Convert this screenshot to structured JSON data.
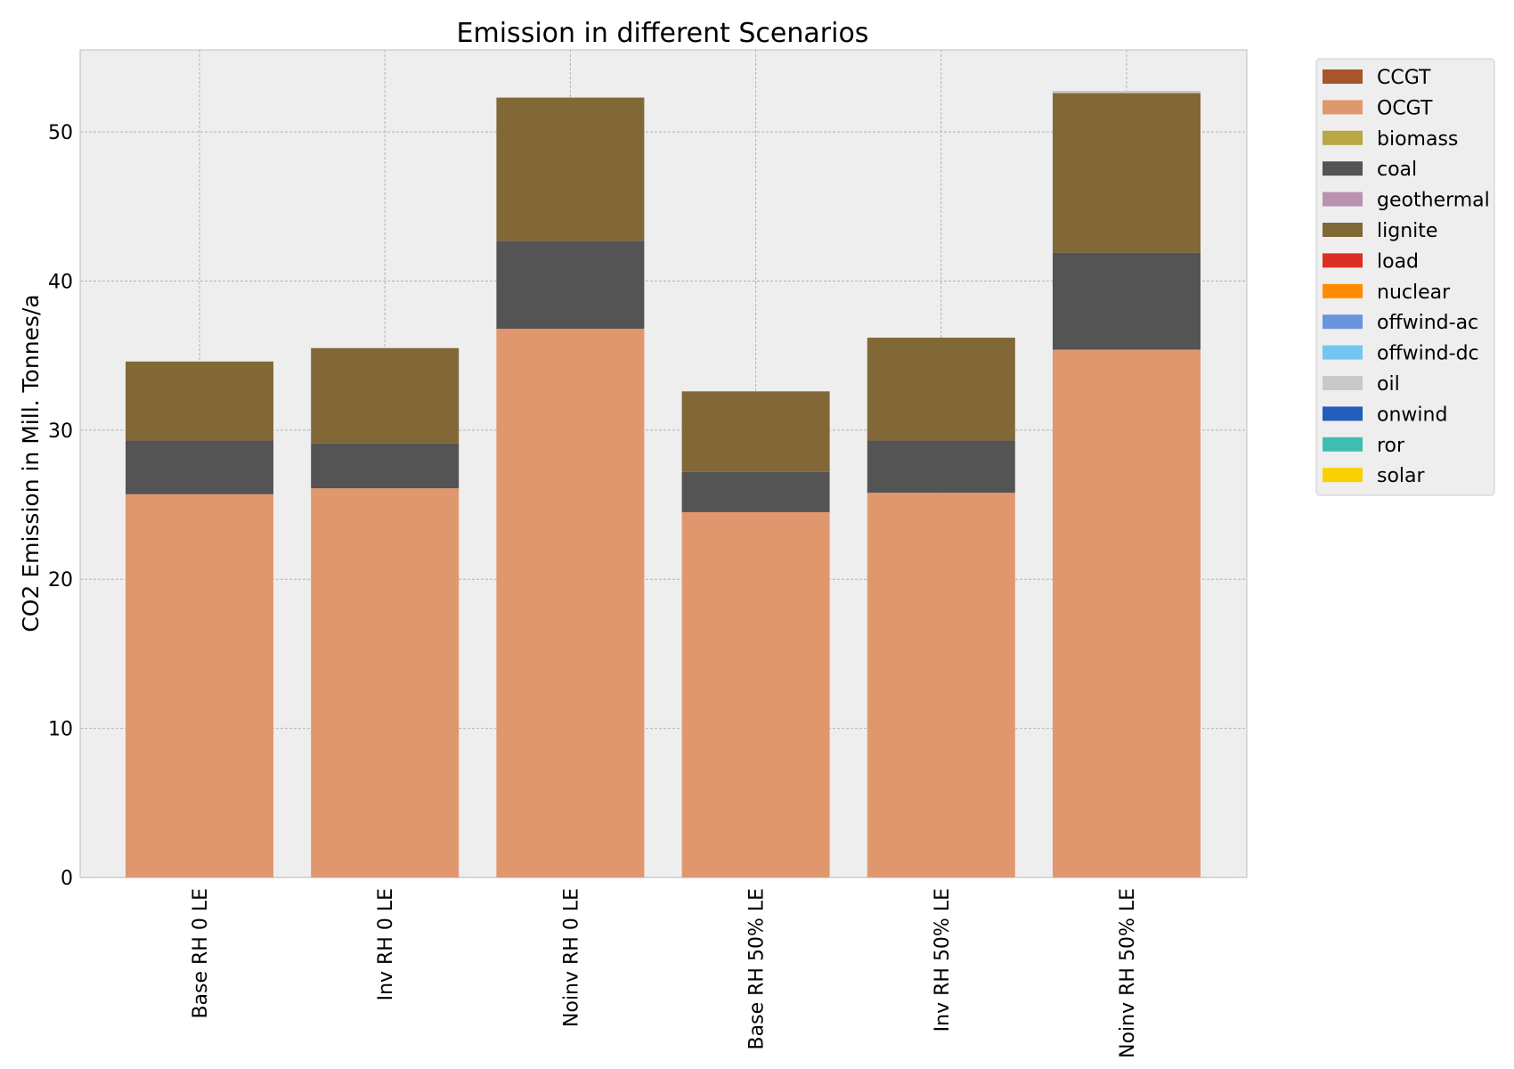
{
  "chart_data": {
    "type": "bar",
    "stacked": true,
    "title": "Emission in different Scenarios",
    "xlabel": "",
    "ylabel": "CO2 Emission in Mill. Tonnes/a",
    "ylim": [
      0,
      55.5
    ],
    "yticks": [
      0,
      10,
      20,
      30,
      40,
      50
    ],
    "grid": true,
    "legend_position": "outside-right-top",
    "categories": [
      "Base RH 0 LE",
      "Inv RH 0 LE",
      "Noinv RH 0 LE",
      "Base RH 50% LE",
      "Inv RH 50% LE",
      "Noinv RH 50% LE"
    ],
    "series": [
      {
        "name": "CCGT",
        "color": "#a6562a",
        "values": [
          0,
          0,
          0,
          0,
          0,
          0
        ]
      },
      {
        "name": "OCGT",
        "color": "#e1976e",
        "values": [
          25.7,
          26.1,
          36.8,
          24.5,
          25.8,
          35.4
        ]
      },
      {
        "name": "biomass",
        "color": "#baa741",
        "values": [
          0,
          0,
          0,
          0,
          0,
          0
        ]
      },
      {
        "name": "coal",
        "color": "#545454",
        "values": [
          3.6,
          3.0,
          5.9,
          2.7,
          3.5,
          6.5
        ]
      },
      {
        "name": "geothermal",
        "color": "#ba91b1",
        "values": [
          0,
          0,
          0,
          0,
          0,
          0
        ]
      },
      {
        "name": "lignite",
        "color": "#826837",
        "values": [
          5.3,
          6.4,
          9.6,
          5.4,
          6.9,
          10.7
        ]
      },
      {
        "name": "load",
        "color": "#dd2e23",
        "values": [
          0,
          0,
          0,
          0,
          0,
          0
        ]
      },
      {
        "name": "nuclear",
        "color": "#ff8c00",
        "values": [
          0,
          0,
          0,
          0,
          0,
          0
        ]
      },
      {
        "name": "offwind-ac",
        "color": "#6895dd",
        "values": [
          0,
          0,
          0,
          0,
          0,
          0
        ]
      },
      {
        "name": "offwind-dc",
        "color": "#74c6f2",
        "values": [
          0,
          0,
          0,
          0,
          0,
          0
        ]
      },
      {
        "name": "oil",
        "color": "#c9c9c9",
        "values": [
          0,
          0,
          0,
          0,
          0,
          0.15
        ]
      },
      {
        "name": "onwind",
        "color": "#235ebc",
        "values": [
          0,
          0,
          0,
          0,
          0,
          0
        ]
      },
      {
        "name": "ror",
        "color": "#3dbfb0",
        "values": [
          0,
          0,
          0,
          0,
          0,
          0
        ]
      },
      {
        "name": "solar",
        "color": "#f9d002",
        "values": [
          0,
          0,
          0,
          0,
          0,
          0
        ]
      }
    ]
  }
}
